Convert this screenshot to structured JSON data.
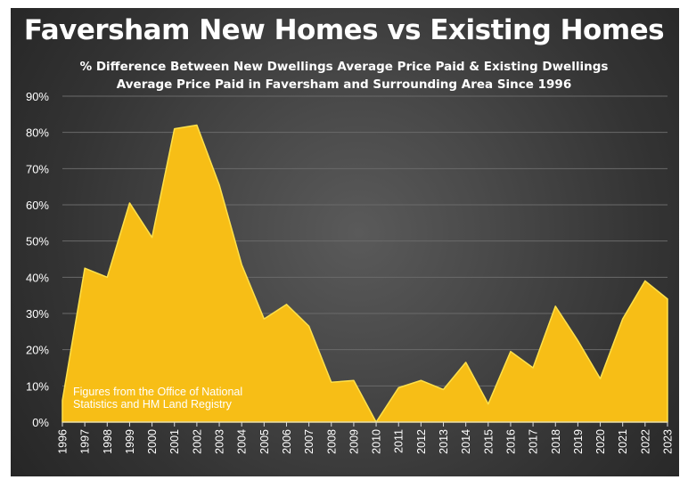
{
  "chart_data": {
    "type": "area",
    "title": "Faversham New Homes vs Existing Homes",
    "subtitle_lines": [
      "% Difference Between New Dwellings Average Price Paid & Existing Dwellings",
      "Average Price Paid in Faversham and Surrounding Area Since 1996"
    ],
    "annotation_lines": [
      "Figures from the Office of National",
      "Statistics and HM Land Registry"
    ],
    "xlabel": "",
    "ylabel": "",
    "ylim": [
      0,
      90
    ],
    "y_ticks": [
      "0%",
      "10%",
      "20%",
      "30%",
      "40%",
      "50%",
      "60%",
      "70%",
      "80%",
      "90%"
    ],
    "grid": true,
    "fill_color": "#F7BE16",
    "x": [
      "1996",
      "1997",
      "1998",
      "1999",
      "2000",
      "2001",
      "2002",
      "2003",
      "2004",
      "2005",
      "2006",
      "2007",
      "2008",
      "2009",
      "2010",
      "2011",
      "2012",
      "2013",
      "2014",
      "2015",
      "2016",
      "2017",
      "2018",
      "2019",
      "2020",
      "2021",
      "2022",
      "2023"
    ],
    "values": [
      6,
      42.5,
      40,
      60.5,
      51,
      81,
      82,
      65.5,
      43.5,
      28.5,
      32.5,
      26.5,
      11,
      11.5,
      0,
      9.5,
      11.5,
      9,
      16.5,
      5,
      19.5,
      15,
      32,
      22.5,
      12,
      28.5,
      39,
      34
    ]
  }
}
